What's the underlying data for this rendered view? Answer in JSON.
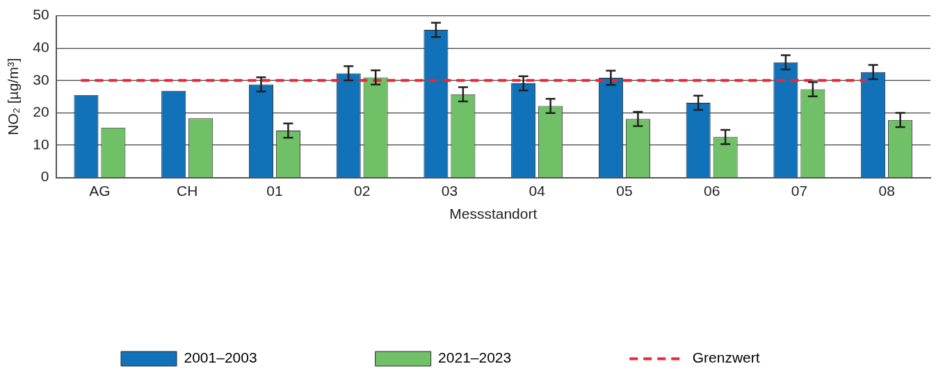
{
  "chart_data": {
    "type": "bar",
    "xlabel": "Messstandort",
    "ylabel": "NO₂ [µg/m³]",
    "categories": [
      "AG",
      "CH",
      "01",
      "02",
      "03",
      "04",
      "05",
      "06",
      "07",
      "08"
    ],
    "series": [
      {
        "name": "2001–2003",
        "color": "#1172ba",
        "values": [
          25.5,
          26.8,
          28.8,
          32.2,
          45.6,
          29.1,
          30.8,
          23.1,
          35.6,
          32.6
        ],
        "errors": [
          null,
          null,
          2.2,
          2.2,
          2.2,
          2.2,
          2.2,
          2.2,
          2.2,
          2.2
        ]
      },
      {
        "name": "2021–2023",
        "color": "#70c067",
        "values": [
          15.4,
          18.3,
          14.5,
          30.9,
          25.7,
          22.1,
          18.1,
          12.5,
          27.3,
          17.8
        ],
        "errors": [
          null,
          null,
          2.2,
          2.2,
          2.2,
          2.2,
          2.2,
          2.2,
          2.2,
          2.2
        ]
      }
    ],
    "ylim": [
      0,
      50
    ],
    "yticks": [
      0,
      10,
      20,
      30,
      40,
      50
    ],
    "grid": "y",
    "legend": "bottom",
    "ref_lines": [
      {
        "axis": "y",
        "value": 30,
        "label": "Grenzwert",
        "color": "#ee2630",
        "line_style": "dashed"
      }
    ]
  }
}
